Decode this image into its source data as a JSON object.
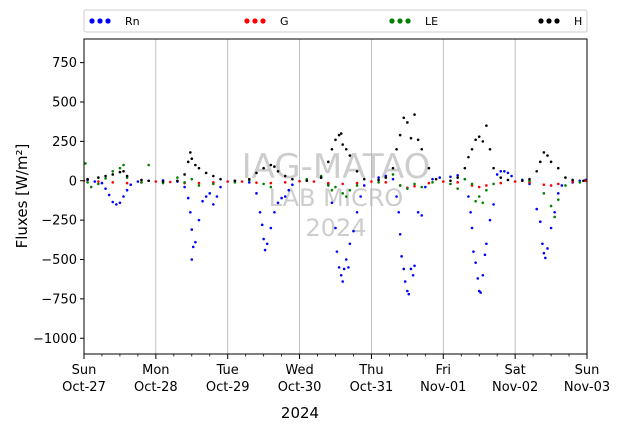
{
  "chart_data": {
    "type": "scatter",
    "ylabel": "Fluxes [W/m²]",
    "xlabel": "2024",
    "ylim": [
      -1100,
      900
    ],
    "yticks": [
      750,
      500,
      250,
      0,
      -250,
      -500,
      -750,
      -1000
    ],
    "xlim": [
      0,
      7
    ],
    "xticks": [
      {
        "x": 0,
        "day": "Sun",
        "date": "Oct-27"
      },
      {
        "x": 1,
        "day": "Mon",
        "date": "Oct-28"
      },
      {
        "x": 2,
        "day": "Tue",
        "date": "Oct-29"
      },
      {
        "x": 3,
        "day": "Wed",
        "date": "Oct-30"
      },
      {
        "x": 4,
        "day": "Thu",
        "date": "Oct-31"
      },
      {
        "x": 5,
        "day": "Fri",
        "date": "Nov-01"
      },
      {
        "x": 6,
        "day": "Sat",
        "date": "Nov-02"
      },
      {
        "x": 7,
        "day": "Sun",
        "date": "Nov-03"
      }
    ],
    "grid": "vertical",
    "legend_position": "top",
    "watermark": [
      "IAG-MATAO",
      "LAB MICRO",
      "2024"
    ],
    "series": [
      {
        "name": "Rn",
        "color": "#0000ff",
        "marker": "dots",
        "points": [
          [
            0.05,
            5
          ],
          [
            0.15,
            -5
          ],
          [
            0.25,
            -15
          ],
          [
            0.3,
            -50
          ],
          [
            0.35,
            -90
          ],
          [
            0.4,
            -135
          ],
          [
            0.45,
            -150
          ],
          [
            0.5,
            -140
          ],
          [
            0.55,
            -100
          ],
          [
            0.6,
            -60
          ],
          [
            0.65,
            -25
          ],
          [
            0.75,
            -5
          ],
          [
            0.9,
            0
          ],
          [
            1.1,
            2
          ],
          [
            1.3,
            -5
          ],
          [
            1.4,
            -40
          ],
          [
            1.45,
            -110
          ],
          [
            1.48,
            -200
          ],
          [
            1.5,
            -310
          ],
          [
            1.52,
            -420
          ],
          [
            1.5,
            -500
          ],
          [
            1.55,
            -390
          ],
          [
            1.6,
            -250
          ],
          [
            1.65,
            -130
          ],
          [
            1.7,
            -100
          ],
          [
            1.75,
            -80
          ],
          [
            1.8,
            -150
          ],
          [
            1.85,
            -100
          ],
          [
            1.9,
            -40
          ],
          [
            2.1,
            0
          ],
          [
            2.3,
            -10
          ],
          [
            2.4,
            -80
          ],
          [
            2.45,
            -200
          ],
          [
            2.48,
            -280
          ],
          [
            2.5,
            -370
          ],
          [
            2.52,
            -440
          ],
          [
            2.55,
            -400
          ],
          [
            2.6,
            -300
          ],
          [
            2.65,
            -200
          ],
          [
            2.7,
            -140
          ],
          [
            2.75,
            -110
          ],
          [
            2.8,
            -100
          ],
          [
            2.85,
            -60
          ],
          [
            2.9,
            -25
          ],
          [
            3.1,
            5
          ],
          [
            3.3,
            20
          ],
          [
            3.4,
            -20
          ],
          [
            3.45,
            -140
          ],
          [
            3.5,
            -300
          ],
          [
            3.52,
            -450
          ],
          [
            3.55,
            -550
          ],
          [
            3.58,
            -600
          ],
          [
            3.6,
            -640
          ],
          [
            3.62,
            -560
          ],
          [
            3.65,
            -500
          ],
          [
            3.68,
            -550
          ],
          [
            3.7,
            -400
          ],
          [
            3.75,
            -320
          ],
          [
            3.8,
            -200
          ],
          [
            3.85,
            -100
          ],
          [
            3.9,
            -30
          ],
          [
            4.1,
            20
          ],
          [
            4.2,
            30
          ],
          [
            4.3,
            10
          ],
          [
            4.35,
            -100
          ],
          [
            4.38,
            -200
          ],
          [
            4.4,
            -340
          ],
          [
            4.42,
            -480
          ],
          [
            4.45,
            -560
          ],
          [
            4.47,
            -640
          ],
          [
            4.5,
            -700
          ],
          [
            4.52,
            -720
          ],
          [
            4.55,
            -560
          ],
          [
            4.58,
            -600
          ],
          [
            4.6,
            -540
          ],
          [
            4.65,
            -200
          ],
          [
            4.7,
            -220
          ],
          [
            4.75,
            -40
          ],
          [
            4.85,
            10
          ],
          [
            4.95,
            20
          ],
          [
            5.1,
            25
          ],
          [
            5.2,
            35
          ],
          [
            5.3,
            10
          ],
          [
            5.35,
            -100
          ],
          [
            5.38,
            -200
          ],
          [
            5.4,
            -300
          ],
          [
            5.42,
            -450
          ],
          [
            5.45,
            -520
          ],
          [
            5.48,
            -620
          ],
          [
            5.5,
            -700
          ],
          [
            5.52,
            -710
          ],
          [
            5.55,
            -600
          ],
          [
            5.58,
            -470
          ],
          [
            5.6,
            -400
          ],
          [
            5.65,
            -250
          ],
          [
            5.7,
            -150
          ],
          [
            5.75,
            40
          ],
          [
            5.8,
            60
          ],
          [
            5.85,
            60
          ],
          [
            5.9,
            50
          ],
          [
            5.95,
            30
          ],
          [
            6.1,
            5
          ],
          [
            6.2,
            -20
          ],
          [
            6.3,
            -180
          ],
          [
            6.35,
            -260
          ],
          [
            6.38,
            -400
          ],
          [
            6.4,
            -460
          ],
          [
            6.42,
            -490
          ],
          [
            6.45,
            -430
          ],
          [
            6.5,
            -300
          ],
          [
            6.55,
            -200
          ],
          [
            6.6,
            -80
          ],
          [
            6.65,
            -30
          ],
          [
            6.8,
            -10
          ],
          [
            6.9,
            0
          ],
          [
            6.98,
            5
          ]
        ]
      },
      {
        "name": "G",
        "color": "#ff0000",
        "marker": "dots",
        "points": [
          [
            0.0,
            0
          ],
          [
            0.2,
            -5
          ],
          [
            0.4,
            -10
          ],
          [
            0.6,
            -15
          ],
          [
            0.8,
            -10
          ],
          [
            1.0,
            -5
          ],
          [
            1.2,
            -8
          ],
          [
            1.4,
            -15
          ],
          [
            1.6,
            -15
          ],
          [
            1.8,
            -10
          ],
          [
            2.0,
            -5
          ],
          [
            2.2,
            -5
          ],
          [
            2.4,
            -12
          ],
          [
            2.6,
            -15
          ],
          [
            2.8,
            -10
          ],
          [
            3.0,
            -3
          ],
          [
            3.2,
            -5
          ],
          [
            3.4,
            -15
          ],
          [
            3.6,
            -20
          ],
          [
            3.8,
            -15
          ],
          [
            4.0,
            -5
          ],
          [
            4.2,
            -10
          ],
          [
            4.4,
            -30
          ],
          [
            4.5,
            -45
          ],
          [
            4.6,
            -35
          ],
          [
            4.8,
            -15
          ],
          [
            5.0,
            -5
          ],
          [
            5.2,
            -10
          ],
          [
            5.4,
            -30
          ],
          [
            5.5,
            -40
          ],
          [
            5.6,
            -30
          ],
          [
            5.8,
            -15
          ],
          [
            6.0,
            -5
          ],
          [
            6.2,
            -10
          ],
          [
            6.4,
            -25
          ],
          [
            6.5,
            -30
          ],
          [
            6.6,
            -20
          ],
          [
            6.8,
            -5
          ],
          [
            6.98,
            0
          ]
        ]
      },
      {
        "name": "LE",
        "color": "#008000",
        "marker": "dots",
        "points": [
          [
            0.02,
            110
          ],
          [
            0.05,
            -10
          ],
          [
            0.1,
            -40
          ],
          [
            0.2,
            -20
          ],
          [
            0.3,
            15
          ],
          [
            0.4,
            60
          ],
          [
            0.5,
            80
          ],
          [
            0.55,
            100
          ],
          [
            0.6,
            20
          ],
          [
            0.8,
            -10
          ],
          [
            0.9,
            100
          ],
          [
            1.1,
            -15
          ],
          [
            1.3,
            20
          ],
          [
            1.4,
            -10
          ],
          [
            1.5,
            10
          ],
          [
            1.6,
            -30
          ],
          [
            1.8,
            -20
          ],
          [
            2.1,
            -10
          ],
          [
            2.3,
            5
          ],
          [
            2.5,
            -20
          ],
          [
            2.6,
            -40
          ],
          [
            3.1,
            10
          ],
          [
            3.3,
            30
          ],
          [
            3.4,
            -30
          ],
          [
            3.45,
            -60
          ],
          [
            3.5,
            -40
          ],
          [
            3.6,
            -80
          ],
          [
            3.65,
            -100
          ],
          [
            3.7,
            -60
          ],
          [
            3.8,
            -30
          ],
          [
            4.1,
            -10
          ],
          [
            4.3,
            40
          ],
          [
            4.4,
            -30
          ],
          [
            4.5,
            -50
          ],
          [
            4.6,
            -20
          ],
          [
            4.7,
            -40
          ],
          [
            4.85,
            -10
          ],
          [
            5.1,
            -20
          ],
          [
            5.2,
            -50
          ],
          [
            5.3,
            10
          ],
          [
            5.4,
            -20
          ],
          [
            5.45,
            -130
          ],
          [
            5.5,
            -100
          ],
          [
            5.55,
            -140
          ],
          [
            5.6,
            -60
          ],
          [
            5.7,
            -20
          ],
          [
            6.2,
            0
          ],
          [
            6.4,
            -80
          ],
          [
            6.5,
            -160
          ],
          [
            6.55,
            -230
          ],
          [
            6.6,
            -120
          ],
          [
            6.7,
            -30
          ],
          [
            6.9,
            -10
          ]
        ]
      },
      {
        "name": "H",
        "color": "#000000",
        "marker": "dots",
        "points": [
          [
            0.05,
            10
          ],
          [
            0.2,
            20
          ],
          [
            0.3,
            30
          ],
          [
            0.4,
            40
          ],
          [
            0.5,
            55
          ],
          [
            0.55,
            60
          ],
          [
            0.6,
            30
          ],
          [
            0.8,
            5
          ],
          [
            0.9,
            0
          ],
          [
            1.1,
            -5
          ],
          [
            1.3,
            0
          ],
          [
            1.4,
            40
          ],
          [
            1.45,
            120
          ],
          [
            1.48,
            180
          ],
          [
            1.5,
            140
          ],
          [
            1.55,
            100
          ],
          [
            1.6,
            80
          ],
          [
            1.7,
            50
          ],
          [
            1.8,
            30
          ],
          [
            1.9,
            10
          ],
          [
            2.1,
            0
          ],
          [
            2.3,
            10
          ],
          [
            2.4,
            50
          ],
          [
            2.5,
            80
          ],
          [
            2.6,
            100
          ],
          [
            2.65,
            90
          ],
          [
            2.7,
            60
          ],
          [
            2.8,
            30
          ],
          [
            2.9,
            10
          ],
          [
            3.1,
            0
          ],
          [
            3.3,
            20
          ],
          [
            3.4,
            120
          ],
          [
            3.45,
            200
          ],
          [
            3.5,
            260
          ],
          [
            3.55,
            290
          ],
          [
            3.58,
            300
          ],
          [
            3.6,
            230
          ],
          [
            3.65,
            200
          ],
          [
            3.7,
            160
          ],
          [
            3.8,
            60
          ],
          [
            3.9,
            10
          ],
          [
            4.1,
            5
          ],
          [
            4.2,
            20
          ],
          [
            4.3,
            80
          ],
          [
            4.35,
            200
          ],
          [
            4.4,
            290
          ],
          [
            4.45,
            400
          ],
          [
            4.5,
            370
          ],
          [
            4.55,
            270
          ],
          [
            4.6,
            420
          ],
          [
            4.65,
            260
          ],
          [
            4.7,
            200
          ],
          [
            4.8,
            80
          ],
          [
            4.9,
            10
          ],
          [
            5.1,
            0
          ],
          [
            5.2,
            20
          ],
          [
            5.3,
            80
          ],
          [
            5.35,
            150
          ],
          [
            5.4,
            200
          ],
          [
            5.45,
            260
          ],
          [
            5.5,
            280
          ],
          [
            5.55,
            250
          ],
          [
            5.6,
            350
          ],
          [
            5.65,
            200
          ],
          [
            5.7,
            80
          ],
          [
            5.8,
            20
          ],
          [
            5.9,
            5
          ],
          [
            6.1,
            0
          ],
          [
            6.2,
            10
          ],
          [
            6.3,
            60
          ],
          [
            6.35,
            120
          ],
          [
            6.4,
            180
          ],
          [
            6.45,
            160
          ],
          [
            6.5,
            120
          ],
          [
            6.6,
            80
          ],
          [
            6.7,
            20
          ],
          [
            6.8,
            5
          ],
          [
            6.95,
            0
          ]
        ]
      }
    ]
  }
}
